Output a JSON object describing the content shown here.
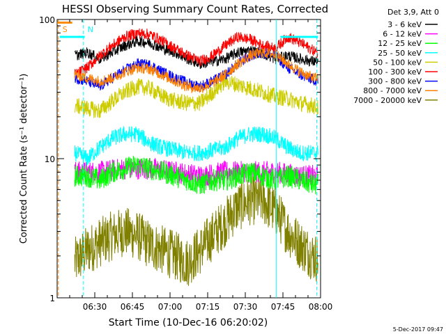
{
  "chart_data": {
    "type": "line",
    "title": "HESSI Observing Summary Count Rates, Corrected",
    "xlabel": "Start Time (10-Dec-16 06:20:02)",
    "ylabel": "Corrected Count Rate (s⁻¹ detector⁻¹)",
    "y_scale": "log",
    "ylim": [
      1,
      100
    ],
    "xlim_minutes": [
      375,
      480
    ],
    "x_ticks": [
      {
        "minute": 390,
        "label": "06:30"
      },
      {
        "minute": 405,
        "label": "06:45"
      },
      {
        "minute": 420,
        "label": "07:00"
      },
      {
        "minute": 435,
        "label": "07:15"
      },
      {
        "minute": 450,
        "label": "07:30"
      },
      {
        "minute": 465,
        "label": "07:45"
      },
      {
        "minute": 480,
        "label": "08:00"
      }
    ],
    "y_ticks": [
      {
        "value": 1,
        "label": "1"
      },
      {
        "value": 10,
        "label": "10"
      },
      {
        "value": 100,
        "label": "100"
      }
    ],
    "legend_header": "Det 3,9, Att 0",
    "legend_position": "top-right outside plot",
    "footer": "5-Dec-2017 09:47",
    "time_labels": [
      {
        "minute": 375.5,
        "text": "S",
        "color": "#ff8c00",
        "line": "dashed",
        "line_color": "#ff8c00"
      },
      {
        "minute": 385.5,
        "text": "N",
        "color": "#00ffff",
        "line": "dashed",
        "line_color": "#00ffff"
      },
      {
        "minute": 462.3,
        "text": "",
        "line": "solid",
        "line_color": "#00ffff"
      },
      {
        "minute": 478.5,
        "text": "",
        "line": "dashed",
        "line_color": "#00ffff"
      }
    ],
    "bars": [
      {
        "color": "#ff8c00",
        "start": 375,
        "end": 381,
        "y": 95
      },
      {
        "color": "#00ffff",
        "start": 376,
        "end": 386,
        "y": 75
      },
      {
        "color": "#00ffff",
        "start": 464,
        "end": 479,
        "y": 75
      }
    ],
    "series": [
      {
        "name": "3 - 6 keV",
        "color": "#000000",
        "points": [
          [
            382,
            55
          ],
          [
            387,
            58
          ],
          [
            392,
            52
          ],
          [
            397,
            58
          ],
          [
            402,
            65
          ],
          [
            407,
            70
          ],
          [
            412,
            68
          ],
          [
            417,
            62
          ],
          [
            422,
            58
          ],
          [
            427,
            52
          ],
          [
            432,
            48
          ],
          [
            437,
            50
          ],
          [
            442,
            52
          ],
          [
            447,
            58
          ],
          [
            452,
            60
          ],
          [
            457,
            57
          ],
          [
            462,
            52
          ],
          [
            467,
            55
          ],
          [
            472,
            52
          ],
          [
            477,
            50
          ],
          [
            479,
            50
          ]
        ]
      },
      {
        "name": "6 - 12 keV",
        "color": "#ff00ff",
        "points": [
          [
            382,
            8
          ],
          [
            392,
            8
          ],
          [
            402,
            8.5
          ],
          [
            412,
            8.5
          ],
          [
            422,
            8
          ],
          [
            432,
            7.5
          ],
          [
            442,
            8
          ],
          [
            452,
            8
          ],
          [
            462,
            8
          ],
          [
            472,
            7.5
          ],
          [
            479,
            7.5
          ]
        ]
      },
      {
        "name": "12 - 25 keV",
        "color": "#00ff00",
        "points": [
          [
            382,
            7.5
          ],
          [
            387,
            7.5
          ],
          [
            392,
            7
          ],
          [
            397,
            8
          ],
          [
            402,
            8.5
          ],
          [
            407,
            9
          ],
          [
            412,
            8.5
          ],
          [
            417,
            8
          ],
          [
            422,
            7.5
          ],
          [
            427,
            7
          ],
          [
            432,
            6.5
          ],
          [
            437,
            7
          ],
          [
            442,
            7
          ],
          [
            447,
            7.5
          ],
          [
            452,
            8
          ],
          [
            457,
            7.5
          ],
          [
            462,
            7
          ],
          [
            467,
            7.5
          ],
          [
            472,
            7
          ],
          [
            477,
            6.5
          ],
          [
            479,
            6.5
          ]
        ]
      },
      {
        "name": "25 - 50 keV",
        "color": "#00ffff",
        "points": [
          [
            382,
            11
          ],
          [
            387,
            10
          ],
          [
            392,
            12
          ],
          [
            397,
            14
          ],
          [
            402,
            15
          ],
          [
            407,
            15
          ],
          [
            412,
            13
          ],
          [
            417,
            12
          ],
          [
            422,
            11.5
          ],
          [
            427,
            11
          ],
          [
            432,
            11
          ],
          [
            437,
            11.5
          ],
          [
            442,
            12
          ],
          [
            447,
            14
          ],
          [
            452,
            15
          ],
          [
            457,
            15
          ],
          [
            462,
            14
          ],
          [
            467,
            12
          ],
          [
            472,
            11
          ],
          [
            477,
            11
          ],
          [
            479,
            11
          ]
        ]
      },
      {
        "name": "50 - 100 keV",
        "color": "#cccc00",
        "points": [
          [
            382,
            24
          ],
          [
            387,
            23
          ],
          [
            392,
            22
          ],
          [
            397,
            26
          ],
          [
            402,
            30
          ],
          [
            407,
            33
          ],
          [
            412,
            32
          ],
          [
            417,
            28
          ],
          [
            422,
            26
          ],
          [
            427,
            25
          ],
          [
            432,
            25
          ],
          [
            437,
            30
          ],
          [
            442,
            36
          ],
          [
            447,
            34
          ],
          [
            452,
            32
          ],
          [
            457,
            30
          ],
          [
            462,
            28
          ],
          [
            467,
            27
          ],
          [
            472,
            25
          ],
          [
            477,
            24
          ],
          [
            479,
            23
          ]
        ]
      },
      {
        "name": "100 - 300 keV",
        "color": "#ff0000",
        "points": [
          [
            382,
            40
          ],
          [
            387,
            45
          ],
          [
            392,
            55
          ],
          [
            397,
            65
          ],
          [
            402,
            75
          ],
          [
            407,
            80
          ],
          [
            412,
            78
          ],
          [
            417,
            70
          ],
          [
            422,
            62
          ],
          [
            427,
            55
          ],
          [
            432,
            50
          ],
          [
            437,
            55
          ],
          [
            442,
            65
          ],
          [
            447,
            75
          ],
          [
            452,
            72
          ],
          [
            457,
            65
          ],
          [
            462,
            62
          ],
          [
            467,
            75
          ],
          [
            472,
            68
          ],
          [
            477,
            60
          ],
          [
            479,
            58
          ]
        ]
      },
      {
        "name": "300 - 800 keV",
        "color": "#0000ff",
        "points": [
          [
            382,
            38
          ],
          [
            387,
            36
          ],
          [
            392,
            33
          ],
          [
            397,
            38
          ],
          [
            402,
            43
          ],
          [
            407,
            48
          ],
          [
            412,
            47
          ],
          [
            417,
            42
          ],
          [
            422,
            38
          ],
          [
            427,
            35
          ],
          [
            432,
            33
          ],
          [
            437,
            36
          ],
          [
            442,
            40
          ],
          [
            447,
            48
          ],
          [
            452,
            55
          ],
          [
            457,
            58
          ],
          [
            462,
            55
          ],
          [
            467,
            45
          ],
          [
            472,
            40
          ],
          [
            477,
            37
          ],
          [
            479,
            36
          ]
        ]
      },
      {
        "name": "800 - 7000 keV",
        "color": "#ff8000",
        "points": [
          [
            382,
            40
          ],
          [
            387,
            38
          ],
          [
            392,
            36
          ],
          [
            397,
            38
          ],
          [
            402,
            42
          ],
          [
            407,
            45
          ],
          [
            412,
            44
          ],
          [
            417,
            40
          ],
          [
            422,
            36
          ],
          [
            427,
            33
          ],
          [
            432,
            32
          ],
          [
            437,
            35
          ],
          [
            442,
            40
          ],
          [
            447,
            48
          ],
          [
            452,
            55
          ],
          [
            457,
            58
          ],
          [
            462,
            56
          ],
          [
            467,
            48
          ],
          [
            472,
            42
          ],
          [
            477,
            38
          ],
          [
            479,
            38
          ]
        ]
      },
      {
        "name": "7000 - 20000 keV",
        "color": "#808000",
        "points": [
          [
            382,
            1.8
          ],
          [
            387,
            2.2
          ],
          [
            392,
            2.5
          ],
          [
            397,
            2.8
          ],
          [
            402,
            3
          ],
          [
            407,
            2.8
          ],
          [
            412,
            2.4
          ],
          [
            417,
            2.2
          ],
          [
            422,
            2
          ],
          [
            427,
            1.8
          ],
          [
            432,
            2.2
          ],
          [
            437,
            2.8
          ],
          [
            442,
            3.5
          ],
          [
            447,
            4.5
          ],
          [
            452,
            5
          ],
          [
            457,
            5
          ],
          [
            462,
            4.2
          ],
          [
            467,
            3
          ],
          [
            472,
            2.4
          ],
          [
            477,
            2
          ],
          [
            479,
            1.9
          ]
        ]
      }
    ]
  }
}
